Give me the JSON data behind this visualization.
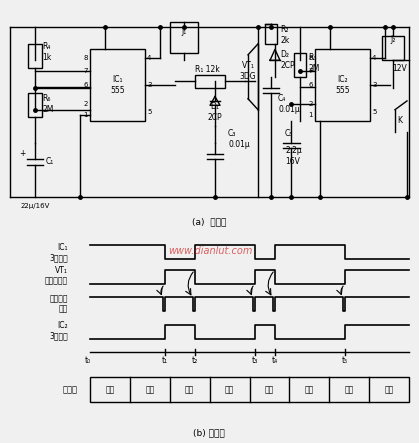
{
  "title_a": "(a)  电路图",
  "title_b": "(b) 波形图",
  "bg_color": "#f0f0f0",
  "line_color": "#000000",
  "waveform_labels": [
    "IC₁\n3脚波形",
    "VT₁\n集电极波形",
    "触发脉冲\n波形",
    "IC₂\n3脚波形"
  ],
  "time_labels": [
    "t₀",
    "t₁",
    "t₂",
    "t₃",
    "t₄",
    "t₅"
  ],
  "motor_label": "电动机",
  "motor_states": [
    "正转",
    "停止",
    "反转",
    "停止",
    "正转",
    "停止",
    "反转",
    "停止"
  ],
  "watermark": "www.dianlut.com"
}
